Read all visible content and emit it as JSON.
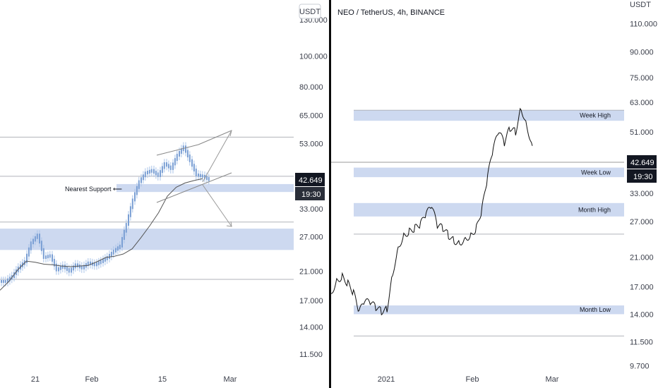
{
  "colors": {
    "zone": "#cdd9f0",
    "candle": "#aac4e8",
    "price_line": "#111111",
    "ma": "#555555",
    "tag_bg": "#131722",
    "tag_text": "#ffffff",
    "divider": "#0b0b0b"
  },
  "left": {
    "currency_label": "USDT",
    "price_tag": "42.649",
    "countdown": "19:30",
    "annotation": "Nearest Support ⟵",
    "y_ticks": [
      "130.000",
      "100.000",
      "80.000",
      "65.000",
      "53.000",
      "42.649",
      "33.000",
      "27.000",
      "21.000",
      "17.000",
      "14.000",
      "11.500"
    ],
    "x_ticks": [
      "21",
      "Feb",
      "15",
      "Mar"
    ]
  },
  "right": {
    "title": "NEO / TetherUS, 4h, BINANCE",
    "currency_label": "USDT",
    "price_tag": "42.649",
    "countdown": "19:30",
    "zones": [
      "Week High",
      "Week Low",
      "Month High",
      "Month Low"
    ],
    "y_ticks": [
      "110.000",
      "90.000",
      "75.000",
      "63.000",
      "51.000",
      "42.649",
      "33.000",
      "27.000",
      "21.000",
      "17.000",
      "14.000",
      "11.500",
      "9.700"
    ],
    "x_ticks": [
      "2021",
      "Feb",
      "Mar"
    ]
  },
  "chart_data": [
    {
      "type": "line",
      "scale": "log",
      "title": "",
      "x_ticks": [
        "21",
        "Feb",
        "15",
        "Mar"
      ],
      "ylim": [
        10.5,
        150
      ],
      "last_price": 42.649,
      "support_zone": [
        37.3,
        39.5
      ],
      "demand_zone": [
        24.5,
        28.6
      ],
      "horizontal_levels": [
        55.5,
        41.8,
        30.0,
        19.8
      ],
      "series": [
        {
          "values": [
            19.5,
            20.2,
            21.5,
            22.5,
            25.8,
            27.3,
            23.2,
            23.5,
            21.2,
            21.8,
            21.0,
            22.0,
            21.5,
            22.3,
            22.0,
            22.5,
            23.2,
            24.3,
            25.2,
            29.5,
            35.2,
            40.2,
            42.8,
            43.6,
            42.0,
            45.8,
            44.2,
            48.7,
            51.7,
            46.8,
            42.2,
            41.8,
            40.8
          ]
        },
        {
          "values": [
            18.3,
            19.5,
            21.2,
            22.6,
            22.4,
            22.1,
            22.0,
            21.8,
            21.7,
            21.8,
            21.9,
            22.5,
            23.2,
            23.4,
            23.8,
            24.7,
            26.8,
            29.2,
            32.1,
            36.2,
            38.6,
            39.8,
            40.5,
            41.1
          ]
        }
      ]
    },
    {
      "type": "line",
      "scale": "log",
      "title": "NEO / TetherUS, 4h, BINANCE",
      "x_ticks": [
        "2021",
        "Feb",
        "Mar"
      ],
      "ylim": [
        9.4,
        130
      ],
      "last_price": 42.649,
      "zones": [
        {
          "label": "Week High",
          "range": [
            55.2,
            59.5
          ]
        },
        {
          "label": "Week Low",
          "range": [
            37.0,
            39.6
          ]
        },
        {
          "label": "Month High",
          "range": [
            28.0,
            30.8
          ]
        },
        {
          "label": "Month Low",
          "range": [
            14.0,
            14.9
          ]
        }
      ],
      "horizontal_levels": [
        24.7,
        12.0
      ],
      "series": [
        {
          "values": [
            16.2,
            17.8,
            18.3,
            17.4,
            16.3,
            14.2,
            15.3,
            15.2,
            14.7,
            14.3,
            14.5,
            18.6,
            22.5,
            24.5,
            25.2,
            25.8,
            26.5,
            28.5,
            30.0,
            26.2,
            25.8,
            24.5,
            23.6,
            23.2,
            24.0,
            24.5,
            25.8,
            29.5,
            37.0,
            45.2,
            51.0,
            47.0,
            52.5,
            51.0,
            60.5,
            53.3,
            46.2
          ]
        }
      ]
    }
  ]
}
